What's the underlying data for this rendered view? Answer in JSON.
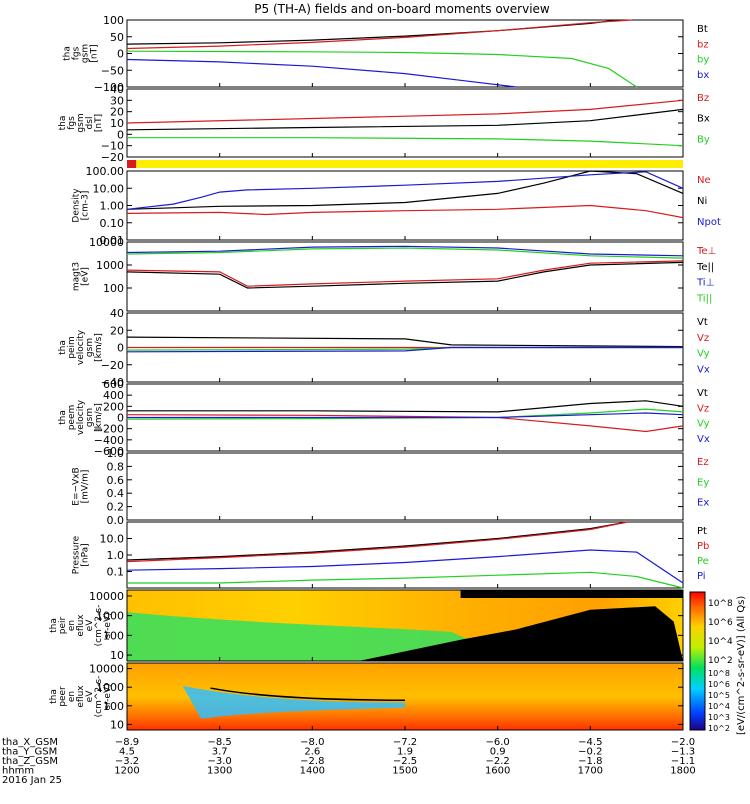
{
  "title": "P5 (TH-A) fields and on-board moments overview",
  "colors": {
    "black": "#000000",
    "red": "#d81b1b",
    "green": "#22d022",
    "blue": "#1a1ad6",
    "yellow": "#ffee00"
  },
  "chart_data": [
    {
      "type": "line",
      "ylabel": [
        "tha",
        "fgs",
        "gsm",
        "[nT]"
      ],
      "ylim": [
        -100,
        100
      ],
      "yticks": [
        "100",
        "50",
        "0",
        "−50",
        "−100"
      ],
      "series": [
        {
          "name": "Bt",
          "color": "black",
          "x": [
            1200,
            1300,
            1400,
            1500,
            1600,
            1700,
            1730
          ],
          "values": [
            28,
            32,
            40,
            52,
            68,
            90,
            100
          ]
        },
        {
          "name": "bz",
          "color": "red",
          "x": [
            1200,
            1300,
            1400,
            1500,
            1600,
            1700,
            1745
          ],
          "values": [
            15,
            22,
            33,
            48,
            68,
            92,
            100
          ]
        },
        {
          "name": "by",
          "color": "green",
          "x": [
            1200,
            1300,
            1400,
            1500,
            1600,
            1680,
            1720,
            1750
          ],
          "values": [
            7,
            6,
            5,
            3,
            -3,
            -15,
            -45,
            -100
          ]
        },
        {
          "name": "bx",
          "color": "blue",
          "x": [
            1200,
            1300,
            1400,
            1500,
            1560,
            1620
          ],
          "values": [
            -18,
            -25,
            -38,
            -60,
            -80,
            -100
          ]
        }
      ]
    },
    {
      "type": "line",
      "ylabel": [
        "tha",
        "fgs",
        "gsm",
        "dsl",
        "[nT]"
      ],
      "ylim": [
        -20,
        40
      ],
      "yticks": [
        "40",
        "30",
        "20",
        "10",
        "0",
        "−10",
        "−20"
      ],
      "series": [
        {
          "name": "Bz",
          "color": "red",
          "x": [
            1200,
            1400,
            1600,
            1700,
            1800
          ],
          "values": [
            10,
            14,
            18,
            22,
            30
          ]
        },
        {
          "name": "Bx",
          "color": "black",
          "x": [
            1200,
            1400,
            1600,
            1700,
            1800
          ],
          "values": [
            4,
            6,
            8,
            12,
            22
          ]
        },
        {
          "name": "By",
          "color": "green",
          "x": [
            1200,
            1400,
            1600,
            1700,
            1800
          ],
          "values": [
            -3,
            -3,
            -4,
            -6,
            -10
          ]
        }
      ]
    },
    {
      "type": "area",
      "label": "mode bar",
      "segments": [
        {
          "x": [
            1200,
            1210
          ],
          "color": "red"
        },
        {
          "x": [
            1210,
            1800
          ],
          "color": "yellow"
        }
      ]
    },
    {
      "type": "line",
      "yscale": "log",
      "ylabel": [
        "Density",
        "[cm-3]"
      ],
      "ylim": [
        0.01,
        100
      ],
      "yticks": [
        "100.00",
        "10.00",
        "1.00",
        "0.10",
        "0.01"
      ],
      "series": [
        {
          "name": "Ne",
          "color": "red",
          "x": [
            1200,
            1300,
            1350,
            1400,
            1500,
            1600,
            1700,
            1760,
            1800
          ],
          "values": [
            0.35,
            0.4,
            0.3,
            0.4,
            0.5,
            0.6,
            1.0,
            0.5,
            0.2
          ]
        },
        {
          "name": "Ni",
          "color": "black",
          "x": [
            1200,
            1300,
            1400,
            1500,
            1600,
            1650,
            1700,
            1750,
            1800
          ],
          "values": [
            0.6,
            0.9,
            1.0,
            1.5,
            5,
            20,
            100,
            70,
            5
          ]
        },
        {
          "name": "Npot",
          "color": "blue",
          "x": [
            1200,
            1250,
            1280,
            1300,
            1330,
            1400,
            1500,
            1600,
            1700,
            1760,
            1800
          ],
          "values": [
            0.6,
            1.2,
            3,
            6,
            8,
            10,
            15,
            25,
            60,
            90,
            10
          ]
        }
      ]
    },
    {
      "type": "line",
      "yscale": "log",
      "ylabel": [
        "magt3",
        "[eV]"
      ],
      "ylim": [
        10,
        10000
      ],
      "yticks": [
        "10000",
        "1000",
        "100"
      ],
      "series": [
        {
          "name": "Te⊥",
          "color": "red",
          "x": [
            1200,
            1300,
            1330,
            1400,
            1500,
            1600,
            1650,
            1700,
            1800
          ],
          "values": [
            600,
            500,
            120,
            150,
            200,
            250,
            600,
            1200,
            1500
          ]
        },
        {
          "name": "Te||",
          "color": "black",
          "x": [
            1200,
            1300,
            1330,
            1400,
            1500,
            1600,
            1650,
            1700,
            1800
          ],
          "values": [
            500,
            400,
            100,
            120,
            160,
            200,
            500,
            1000,
            1300
          ]
        },
        {
          "name": "Ti⊥",
          "color": "blue",
          "x": [
            1200,
            1300,
            1400,
            1500,
            1600,
            1700,
            1800
          ],
          "values": [
            3500,
            4000,
            6000,
            6500,
            5500,
            3000,
            2500
          ]
        },
        {
          "name": "Ti||",
          "color": "green",
          "x": [
            1200,
            1300,
            1400,
            1500,
            1600,
            1700,
            1800
          ],
          "values": [
            3000,
            3500,
            5000,
            5500,
            4500,
            2500,
            2000
          ]
        }
      ]
    },
    {
      "type": "line",
      "ylabel": [
        "tha",
        "peim",
        "velocity",
        "gsm",
        "[km/s]"
      ],
      "ylim": [
        -40,
        40
      ],
      "yticks": [
        "40",
        "20",
        "0",
        "−20",
        "−40"
      ],
      "series": [
        {
          "name": "Vt",
          "color": "black",
          "x": [
            1200,
            1500,
            1550,
            1800
          ],
          "values": [
            12,
            10,
            3,
            1
          ]
        },
        {
          "name": "Vz",
          "color": "red",
          "x": [
            1200,
            1500,
            1550,
            1800
          ],
          "values": [
            0,
            0,
            0,
            0
          ]
        },
        {
          "name": "Vy",
          "color": "green",
          "x": [
            1200,
            1500,
            1550,
            1800
          ],
          "values": [
            -3,
            -2,
            0,
            0
          ]
        },
        {
          "name": "Vx",
          "color": "blue",
          "x": [
            1200,
            1500,
            1550,
            1800
          ],
          "values": [
            -5,
            -4,
            0,
            0
          ]
        }
      ]
    },
    {
      "type": "line",
      "ylabel": [
        "tha",
        "peem",
        "velocity",
        "gsm",
        "[km/s]"
      ],
      "ylim": [
        -600,
        600
      ],
      "yticks": [
        "600",
        "400",
        "200",
        "0",
        "−200",
        "−400",
        "−600"
      ],
      "series": [
        {
          "name": "Vt",
          "color": "black",
          "x": [
            1200,
            1400,
            1600,
            1700,
            1760,
            1800
          ],
          "values": [
            120,
            120,
            100,
            250,
            300,
            200
          ]
        },
        {
          "name": "Vz",
          "color": "red",
          "x": [
            1200,
            1400,
            1600,
            1700,
            1760,
            1800
          ],
          "values": [
            50,
            40,
            0,
            -150,
            -250,
            -150
          ]
        },
        {
          "name": "Vy",
          "color": "green",
          "x": [
            1200,
            1400,
            1600,
            1700,
            1760,
            1800
          ],
          "values": [
            -30,
            -20,
            0,
            80,
            150,
            100
          ]
        },
        {
          "name": "Vx",
          "color": "blue",
          "x": [
            1200,
            1400,
            1600,
            1700,
            1760,
            1800
          ],
          "values": [
            0,
            0,
            0,
            50,
            80,
            50
          ]
        }
      ]
    },
    {
      "type": "line",
      "ylabel": [
        "E=−VxB",
        "[mV/m]"
      ],
      "ylim": [
        0,
        1.0
      ],
      "yticks": [
        "1.0",
        "0.8",
        "0.6",
        "0.4",
        "0.2",
        "0.0"
      ],
      "series": [
        {
          "name": "Ez",
          "color": "red",
          "x": [],
          "values": []
        },
        {
          "name": "Ey",
          "color": "green",
          "x": [],
          "values": []
        },
        {
          "name": "Ex",
          "color": "blue",
          "x": [],
          "values": []
        }
      ]
    },
    {
      "type": "line",
      "yscale": "log",
      "ylabel": [
        "Pressure",
        "[nPa]"
      ],
      "ylim": [
        0.01,
        100
      ],
      "yticks": [
        "10.0",
        "1.0",
        "0.1"
      ],
      "series": [
        {
          "name": "Pt",
          "color": "black",
          "x": [
            1200,
            1300,
            1400,
            1500,
            1600,
            1700,
            1740
          ],
          "values": [
            0.5,
            0.8,
            1.5,
            3.5,
            10,
            40,
            100
          ]
        },
        {
          "name": "Pb",
          "color": "red",
          "x": [
            1200,
            1300,
            1400,
            1500,
            1600,
            1700,
            1740
          ],
          "values": [
            0.4,
            0.7,
            1.3,
            3,
            9,
            35,
            100
          ]
        },
        {
          "name": "Pe",
          "color": "green",
          "x": [
            1200,
            1300,
            1400,
            1500,
            1600,
            1700,
            1750,
            1800
          ],
          "values": [
            0.02,
            0.02,
            0.03,
            0.04,
            0.06,
            0.09,
            0.05,
            0.01
          ]
        },
        {
          "name": "Pi",
          "color": "blue",
          "x": [
            1200,
            1300,
            1400,
            1500,
            1600,
            1700,
            1750,
            1800
          ],
          "values": [
            0.12,
            0.15,
            0.2,
            0.35,
            0.8,
            2,
            1.5,
            0.02
          ]
        }
      ]
    },
    {
      "type": "heatmap",
      "ylabel": [
        "tha",
        "peir",
        "en",
        "eflux",
        "eV",
        "(cm^2-s-",
        "sr-eV)"
      ],
      "yscale": "log",
      "ylim": [
        5,
        20000
      ],
      "yticks": [
        "10000",
        "1000",
        "100",
        "10"
      ]
    },
    {
      "type": "heatmap",
      "ylabel": [
        "tha",
        "peer",
        "en",
        "eflux",
        "eV",
        "(cm^2-s-",
        "sr-eV)"
      ],
      "yscale": "log",
      "ylim": [
        5,
        20000
      ],
      "yticks": [
        "10000",
        "1000",
        "100",
        "10"
      ]
    }
  ],
  "colorbar": {
    "label": "[eV/(cm^2-s-sr-eV)] (All Qs)",
    "ticks_upper": [
      "10^8",
      "10^6",
      "10^4",
      "10^2"
    ],
    "ticks_lower": [
      "10^8",
      "10^6",
      "10^5",
      "10^4",
      "10^3",
      "10^2"
    ]
  },
  "x_axis": {
    "ticks_x": [
      1200,
      1300,
      1400,
      1500,
      1600,
      1700,
      1800
    ],
    "rows": [
      {
        "label": "tha_X_GSM",
        "values": [
          "−8.9",
          "−8.5",
          "−8.0",
          "−7.2",
          "−6.0",
          "−4.5",
          "−2.0"
        ]
      },
      {
        "label": "tha_Y_GSM",
        "values": [
          "4.5",
          "3.7",
          "2.6",
          "1.9",
          "0.9",
          "−0.2",
          "−1.3"
        ]
      },
      {
        "label": "tha_Z_GSM",
        "values": [
          "−3.2",
          "−3.0",
          "−2.8",
          "−2.5",
          "−2.2",
          "−1.8",
          "−1.1"
        ]
      },
      {
        "label": "hhmm",
        "values": [
          "1200",
          "1300",
          "1400",
          "1500",
          "1600",
          "1700",
          "1800"
        ]
      }
    ],
    "date": "2016 Jan 25"
  }
}
